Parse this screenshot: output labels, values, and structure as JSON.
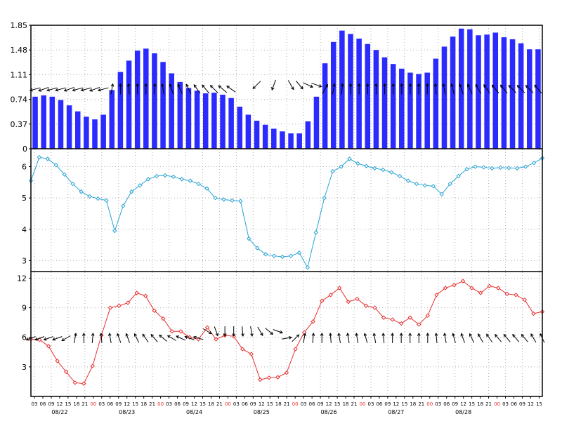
{
  "chart_data": [
    {
      "type": "bar",
      "panel": "top",
      "ylim": [
        0,
        1.85
      ],
      "yticks": [
        "0",
        "0.37",
        "0.74",
        "1.11",
        "1.48",
        "1.85"
      ],
      "values": [
        0.78,
        0.8,
        0.78,
        0.73,
        0.65,
        0.56,
        0.48,
        0.44,
        0.51,
        0.88,
        1.15,
        1.32,
        1.47,
        1.5,
        1.43,
        1.3,
        1.13,
        1.0,
        0.91,
        0.87,
        0.83,
        0.84,
        0.81,
        0.76,
        0.63,
        0.51,
        0.42,
        0.36,
        0.3,
        0.26,
        0.23,
        0.23,
        0.41,
        0.78,
        1.28,
        1.6,
        1.77,
        1.72,
        1.65,
        1.57,
        1.48,
        1.37,
        1.27,
        1.2,
        1.14,
        1.12,
        1.14,
        1.35,
        1.53,
        1.68,
        1.8,
        1.79,
        1.7,
        1.71,
        1.74,
        1.67,
        1.64,
        1.58,
        1.49,
        1.49
      ],
      "vectors": [
        {
          "i": 0,
          "a": -165
        },
        {
          "i": 1,
          "a": -160
        },
        {
          "i": 2,
          "a": -165
        },
        {
          "i": 3,
          "a": -165
        },
        {
          "i": 4,
          "a": -160
        },
        {
          "i": 5,
          "a": -165
        },
        {
          "i": 6,
          "a": -165
        },
        {
          "i": 7,
          "a": -160
        },
        {
          "i": 8,
          "a": -165
        },
        {
          "i": 9,
          "a": 80
        },
        {
          "i": 10,
          "a": 90
        },
        {
          "i": 11,
          "a": 95
        },
        {
          "i": 12,
          "a": 90
        },
        {
          "i": 13,
          "a": 90
        },
        {
          "i": 14,
          "a": 85
        },
        {
          "i": 15,
          "a": 100
        },
        {
          "i": 16,
          "a": 110
        },
        {
          "i": 17,
          "a": 115
        },
        {
          "i": 18,
          "a": 115
        },
        {
          "i": 19,
          "a": 125
        },
        {
          "i": 20,
          "a": 130
        },
        {
          "i": 21,
          "a": 135
        },
        {
          "i": 22,
          "a": 140
        },
        {
          "i": 23,
          "a": 145
        },
        {
          "i": 26,
          "a": -135
        },
        {
          "i": 28,
          "a": -110
        },
        {
          "i": 30,
          "a": -60
        },
        {
          "i": 31,
          "a": -50
        },
        {
          "i": 32,
          "a": -25
        },
        {
          "i": 33,
          "a": -20
        },
        {
          "i": 34,
          "a": 60
        },
        {
          "i": 35,
          "a": 80
        },
        {
          "i": 36,
          "a": 85
        },
        {
          "i": 37,
          "a": 90
        },
        {
          "i": 38,
          "a": 90
        },
        {
          "i": 39,
          "a": 90
        },
        {
          "i": 40,
          "a": 90
        },
        {
          "i": 41,
          "a": 90
        },
        {
          "i": 42,
          "a": 90
        },
        {
          "i": 43,
          "a": 90
        },
        {
          "i": 44,
          "a": 90
        },
        {
          "i": 45,
          "a": 90
        },
        {
          "i": 46,
          "a": 90
        },
        {
          "i": 47,
          "a": 95
        },
        {
          "i": 48,
          "a": 100
        },
        {
          "i": 49,
          "a": 105
        },
        {
          "i": 50,
          "a": 110
        },
        {
          "i": 51,
          "a": 115
        },
        {
          "i": 52,
          "a": 120
        },
        {
          "i": 53,
          "a": 125
        },
        {
          "i": 54,
          "a": 130
        },
        {
          "i": 55,
          "a": 130
        },
        {
          "i": 56,
          "a": 135
        },
        {
          "i": 57,
          "a": 135
        },
        {
          "i": 58,
          "a": 135
        },
        {
          "i": 59,
          "a": 130
        }
      ],
      "color": "#2b2bff"
    },
    {
      "type": "line",
      "panel": "middle",
      "ylim": [
        2.65,
        6.55
      ],
      "yticks": [
        3,
        4,
        5,
        6
      ],
      "values": [
        5.55,
        6.3,
        6.25,
        6.05,
        5.75,
        5.45,
        5.2,
        5.05,
        4.98,
        4.92,
        3.95,
        4.75,
        5.2,
        5.4,
        5.6,
        5.7,
        5.72,
        5.68,
        5.6,
        5.55,
        5.45,
        5.3,
        5.0,
        4.95,
        4.92,
        4.9,
        3.7,
        3.4,
        3.2,
        3.15,
        3.12,
        3.15,
        3.25,
        2.78,
        3.9,
        5.0,
        5.85,
        6.0,
        6.25,
        6.1,
        6.02,
        5.95,
        5.9,
        5.82,
        5.7,
        5.55,
        5.45,
        5.4,
        5.38,
        5.12,
        5.45,
        5.7,
        5.92,
        6.0,
        5.98,
        5.95,
        5.97,
        5.96,
        5.95,
        6.0,
        6.12,
        6.27
      ],
      "color": "#2aa3d4"
    },
    {
      "type": "line",
      "panel": "bottom",
      "ylim": [
        0,
        12.6
      ],
      "yticks": [
        3,
        6,
        9,
        12
      ],
      "values": [
        5.8,
        5.75,
        5.1,
        3.6,
        2.5,
        1.4,
        1.3,
        3.1,
        6.2,
        9.0,
        9.2,
        9.5,
        10.5,
        10.2,
        8.7,
        7.9,
        6.6,
        6.6,
        6.0,
        5.8,
        7.0,
        5.8,
        6.2,
        6.1,
        4.8,
        4.3,
        1.7,
        1.9,
        1.95,
        2.4,
        4.8,
        6.5,
        7.6,
        9.7,
        10.3,
        11.0,
        9.6,
        9.9,
        9.2,
        9.0,
        8.0,
        7.8,
        7.4,
        8.0,
        7.3,
        8.2,
        10.3,
        11.0,
        11.3,
        11.7,
        11.0,
        10.5,
        11.2,
        11.0,
        10.4,
        10.3,
        9.8,
        8.4,
        8.6
      ],
      "vectors": [
        {
          "i": 0,
          "a": -160
        },
        {
          "i": 1,
          "a": -160
        },
        {
          "i": 2,
          "a": -160
        },
        {
          "i": 3,
          "a": -160
        },
        {
          "i": 4,
          "a": -150
        },
        {
          "i": 5,
          "a": 80
        },
        {
          "i": 6,
          "a": 90
        },
        {
          "i": 7,
          "a": 85
        },
        {
          "i": 8,
          "a": 95
        },
        {
          "i": 9,
          "a": 100
        },
        {
          "i": 10,
          "a": 110
        },
        {
          "i": 11,
          "a": 110
        },
        {
          "i": 12,
          "a": 115
        },
        {
          "i": 13,
          "a": 125
        },
        {
          "i": 14,
          "a": 130
        },
        {
          "i": 15,
          "a": 140
        },
        {
          "i": 16,
          "a": 150
        },
        {
          "i": 17,
          "a": 155
        },
        {
          "i": 18,
          "a": 160
        },
        {
          "i": 19,
          "a": 165
        },
        {
          "i": 20,
          "a": -30
        },
        {
          "i": 21,
          "a": -70
        },
        {
          "i": 22,
          "a": -90
        },
        {
          "i": 23,
          "a": -90
        },
        {
          "i": 24,
          "a": -85
        },
        {
          "i": 25,
          "a": -80
        },
        {
          "i": 26,
          "a": -60
        },
        {
          "i": 27,
          "a": -40
        },
        {
          "i": 28,
          "a": -20
        },
        {
          "i": 29,
          "a": 10
        },
        {
          "i": 30,
          "a": 45
        },
        {
          "i": 31,
          "a": 80
        },
        {
          "i": 32,
          "a": 85
        },
        {
          "i": 33,
          "a": 90
        },
        {
          "i": 34,
          "a": 95
        },
        {
          "i": 35,
          "a": 100
        },
        {
          "i": 36,
          "a": 100
        },
        {
          "i": 37,
          "a": 100
        },
        {
          "i": 38,
          "a": 105
        },
        {
          "i": 39,
          "a": 100
        },
        {
          "i": 40,
          "a": 95
        },
        {
          "i": 41,
          "a": 90
        },
        {
          "i": 42,
          "a": 90
        },
        {
          "i": 43,
          "a": 90
        },
        {
          "i": 44,
          "a": 90
        },
        {
          "i": 45,
          "a": 90
        },
        {
          "i": 46,
          "a": 95
        },
        {
          "i": 47,
          "a": 100
        },
        {
          "i": 48,
          "a": 105
        },
        {
          "i": 49,
          "a": 110
        },
        {
          "i": 50,
          "a": 115
        },
        {
          "i": 51,
          "a": 120
        },
        {
          "i": 52,
          "a": 125
        },
        {
          "i": 53,
          "a": 130
        },
        {
          "i": 54,
          "a": 130
        },
        {
          "i": 55,
          "a": 130
        },
        {
          "i": 56,
          "a": 130
        },
        {
          "i": 57,
          "a": 120
        },
        {
          "i": 58,
          "a": 115
        }
      ],
      "color": "#e83030"
    }
  ],
  "time_axis": {
    "hour_labels": [
      "03",
      "06",
      "09",
      "12",
      "15",
      "18",
      "21",
      "00",
      "03",
      "06",
      "09",
      "12",
      "15",
      "18",
      "21",
      "00",
      "03",
      "06",
      "09",
      "12",
      "15",
      "18",
      "21",
      "00",
      "03",
      "06",
      "09",
      "12",
      "15",
      "18",
      "21",
      "00",
      "03",
      "06",
      "09",
      "12",
      "15",
      "18",
      "21",
      "00",
      "03",
      "06",
      "09",
      "12",
      "15",
      "18",
      "21",
      "00",
      "03",
      "06",
      "09",
      "12",
      "15",
      "18",
      "21",
      "00",
      "03",
      "06",
      "09",
      "12",
      "15"
    ],
    "day_labels": [
      "08/22",
      "08/23",
      "08/24",
      "08/25",
      "08/26",
      "08/27",
      "08/28"
    ],
    "midnight_color": "#e83030"
  },
  "colors": {
    "frame": "#000000",
    "grid": "#b0b0b0",
    "vector": "#000000"
  }
}
